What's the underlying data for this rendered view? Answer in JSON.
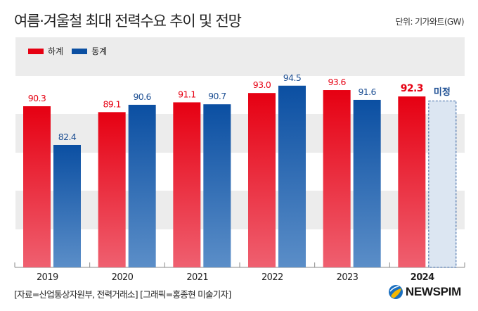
{
  "header": {
    "title": "여름·겨울철 최대 전력수요 추이 및 전망",
    "unit": "단위: 기가와트(GW)"
  },
  "legend": [
    {
      "label": "하계",
      "color": "#e60012"
    },
    {
      "label": "동계",
      "color": "#0b4fa2"
    }
  ],
  "chart_data": {
    "type": "bar",
    "title": "여름·겨울철 최대 전력수요 추이 및 전망",
    "xlabel": "",
    "ylabel": "기가와트(GW)",
    "categories": [
      "2019",
      "2020",
      "2021",
      "2022",
      "2023",
      "2024"
    ],
    "highlight_category": "2024",
    "series": [
      {
        "name": "하계",
        "values": [
          90.3,
          89.1,
          91.1,
          93.0,
          93.6,
          92.3
        ],
        "labels": [
          "90.3",
          "89.1",
          "91.1",
          "93.0",
          "93.6",
          "92.3"
        ],
        "color_top": "#e60012",
        "color_bottom": "#ef6070",
        "label_color": "#e60012"
      },
      {
        "name": "동계",
        "values": [
          82.4,
          90.6,
          90.7,
          94.5,
          91.6,
          null
        ],
        "labels": [
          "82.4",
          "90.6",
          "90.7",
          "94.5",
          "91.6",
          "미정"
        ],
        "color_top": "#0b4fa2",
        "color_bottom": "#5b8ec8",
        "label_color": "#1d4f93"
      }
    ],
    "pending_bar": {
      "category": "2024",
      "series": "동계",
      "label": "미정",
      "fill": "#dce6f2",
      "stroke": "#2f5e9e"
    },
    "ylim": [
      57.4,
      98
    ],
    "grid": "alternating-bands",
    "legend_position": "top-left"
  },
  "footer": {
    "source": "[자료=산업통상자원부, 전력거래소] [그래픽=홍종현 미술기자]",
    "logo_text": "NEWSPIM"
  }
}
